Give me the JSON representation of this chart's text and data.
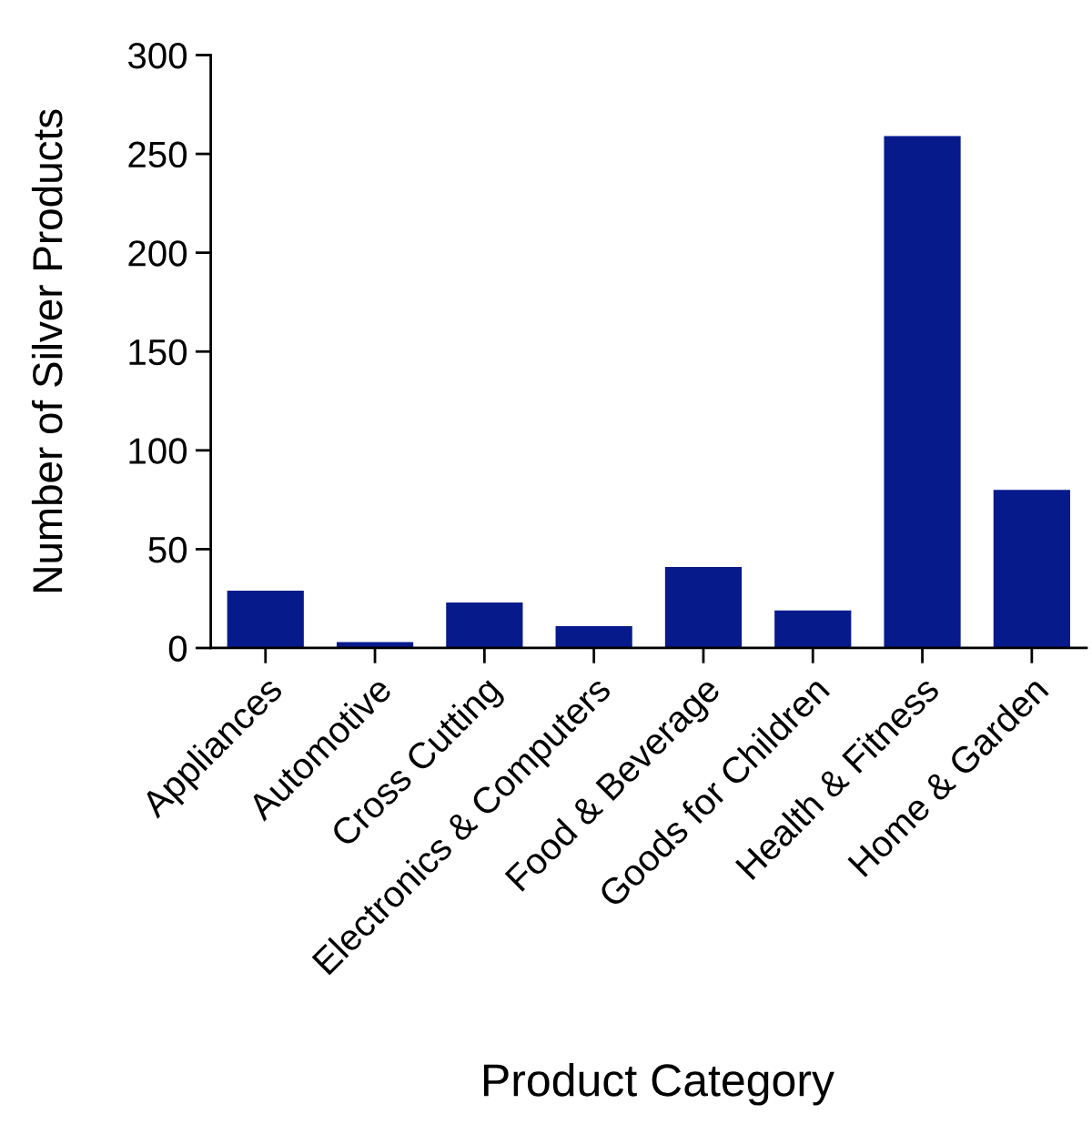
{
  "chart_data": {
    "type": "bar",
    "xlabel": "Product Category",
    "ylabel": "Number of Silver Products",
    "categories": [
      "Appliances",
      "Automotive",
      "Cross Cutting",
      "Electronics & Computers",
      "Food & Beverage",
      "Goods for Children",
      "Health & Fitness",
      "Home & Garden"
    ],
    "values": [
      29,
      3,
      23,
      11,
      41,
      19,
      259,
      80
    ],
    "color": "#061a8c",
    "ylim": [
      0,
      300
    ],
    "yticks": [
      0,
      50,
      100,
      150,
      200,
      250,
      300
    ],
    "grid": false,
    "legend": false
  }
}
